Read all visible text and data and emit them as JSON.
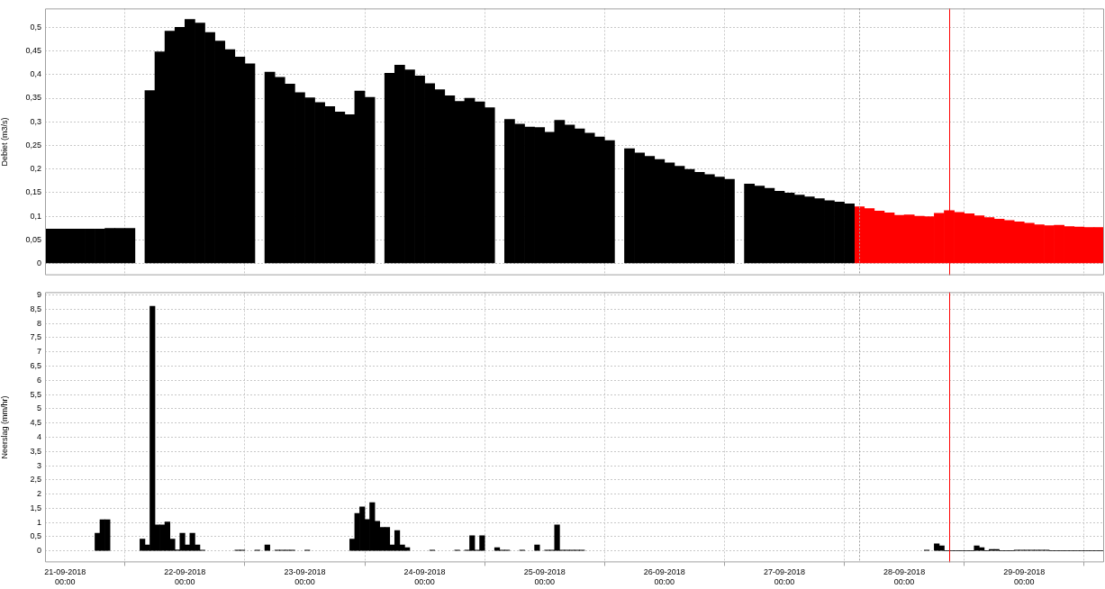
{
  "chart_data": [
    {
      "type": "bar",
      "ylabel": "Debiet (m3/s)",
      "series": [
        {
          "color": "#000000",
          "x": [
            "2018-09-20T21:00",
            "2018-09-20T23:00",
            "2018-09-21T01:00",
            "2018-09-21T03:00",
            "2018-09-21T05:00",
            "2018-09-21T07:00",
            "2018-09-21T09:00",
            "2018-09-21T11:00",
            "2018-09-21T13:00",
            "2018-09-21T15:00",
            "2018-09-21T17:00",
            "2018-09-21T19:00",
            "2018-09-21T21:00",
            "2018-09-21T23:00",
            "2018-09-22T01:00",
            "2018-09-22T03:00",
            "2018-09-22T05:00",
            "2018-09-22T07:00",
            "2018-09-22T09:00",
            "2018-09-22T11:00",
            "2018-09-22T13:00",
            "2018-09-22T15:00",
            "2018-09-22T17:00",
            "2018-09-22T19:00",
            "2018-09-22T21:00",
            "2018-09-22T23:00",
            "2018-09-23T01:00",
            "2018-09-23T03:00",
            "2018-09-23T05:00",
            "2018-09-23T07:00",
            "2018-09-23T09:00",
            "2018-09-23T11:00",
            "2018-09-23T13:00",
            "2018-09-23T15:00",
            "2018-09-23T17:00",
            "2018-09-23T19:00",
            "2018-09-23T21:00",
            "2018-09-23T23:00",
            "2018-09-24T01:00",
            "2018-09-24T03:00",
            "2018-09-24T05:00",
            "2018-09-24T07:00",
            "2018-09-24T09:00",
            "2018-09-24T11:00",
            "2018-09-24T13:00",
            "2018-09-24T15:00",
            "2018-09-24T17:00",
            "2018-09-24T19:00",
            "2018-09-24T21:00",
            "2018-09-24T23:00",
            "2018-09-25T01:00",
            "2018-09-25T03:00",
            "2018-09-25T05:00",
            "2018-09-25T07:00",
            "2018-09-25T09:00",
            "2018-09-25T11:00",
            "2018-09-25T13:00",
            "2018-09-25T15:00",
            "2018-09-25T17:00",
            "2018-09-25T19:00",
            "2018-09-25T21:00",
            "2018-09-25T23:00",
            "2018-09-26T01:00",
            "2018-09-26T03:00",
            "2018-09-26T05:00",
            "2018-09-26T07:00",
            "2018-09-26T09:00",
            "2018-09-26T11:00",
            "2018-09-26T13:00",
            "2018-09-26T15:00",
            "2018-09-26T17:00",
            "2018-09-26T19:00",
            "2018-09-26T21:00",
            "2018-09-26T23:00",
            "2018-09-27T01:00",
            "2018-09-27T03:00",
            "2018-09-27T05:00",
            "2018-09-27T07:00",
            "2018-09-27T09:00",
            "2018-09-27T11:00",
            "2018-09-27T13:00"
          ],
          "values": [
            0.073,
            0.073,
            0.073,
            0.073,
            0.073,
            0.073,
            0.074,
            0.074,
            0.074,
            null,
            0.366,
            0.448,
            0.492,
            0.5,
            0.517,
            0.509,
            0.489,
            0.471,
            0.453,
            0.437,
            0.423,
            null,
            0.405,
            0.394,
            0.38,
            0.362,
            0.351,
            0.341,
            0.332,
            0.321,
            0.315,
            0.365,
            0.352,
            null,
            0.403,
            0.42,
            0.41,
            0.397,
            0.381,
            0.368,
            0.355,
            0.343,
            0.35,
            0.342,
            0.33,
            null,
            0.305,
            0.295,
            0.289,
            0.288,
            0.278,
            0.303,
            0.293,
            0.285,
            0.276,
            0.268,
            0.26,
            null,
            0.243,
            0.234,
            0.227,
            0.22,
            0.213,
            0.206,
            0.199,
            0.193,
            0.188,
            0.183,
            0.178,
            null,
            0.168,
            0.164,
            0.159,
            0.153,
            0.149,
            0.145,
            0.141,
            0.137,
            0.133,
            0.13,
            0.126
          ]
        },
        {
          "color": "#ff0000",
          "x": [
            "2018-09-27T15:00",
            "2018-09-27T17:00",
            "2018-09-27T19:00",
            "2018-09-27T21:00",
            "2018-09-27T23:00",
            "2018-09-28T01:00",
            "2018-09-28T03:00",
            "2018-09-28T05:00",
            "2018-09-28T07:00",
            "2018-09-28T09:00",
            "2018-09-28T11:00",
            "2018-09-28T13:00",
            "2018-09-28T15:00",
            "2018-09-28T17:00",
            "2018-09-28T19:00",
            "2018-09-28T21:00",
            "2018-09-28T23:00",
            "2018-09-29T01:00",
            "2018-09-29T03:00",
            "2018-09-29T05:00",
            "2018-09-29T07:00",
            "2018-09-29T09:00",
            "2018-09-29T11:00",
            "2018-09-29T13:00",
            "2018-09-29T15:00"
          ],
          "values": [
            0.12,
            0.116,
            0.111,
            0.107,
            0.102,
            0.103,
            0.1,
            0.099,
            0.106,
            0.112,
            0.108,
            0.105,
            0.101,
            0.097,
            0.094,
            0.091,
            0.088,
            0.085,
            0.082,
            0.08,
            0.081,
            0.078,
            0.077,
            0.076,
            0.076
          ]
        }
      ],
      "xlim": [
        "2018-09-20T20:00",
        "2018-09-29T16:00"
      ],
      "xticks": [
        {
          "value": "2018-09-21",
          "label": null
        },
        {
          "value": "2018-09-22",
          "label": null
        },
        {
          "value": "2018-09-23",
          "label": null
        },
        {
          "value": "2018-09-24",
          "label": null
        },
        {
          "value": "2018-09-25",
          "label": null
        },
        {
          "value": "2018-09-26",
          "label": null
        },
        {
          "value": "2018-09-27",
          "label": null
        },
        {
          "value": "2018-09-28",
          "label": null
        },
        {
          "value": "2018-09-29",
          "label": null
        }
      ],
      "ylim": [
        -0.025,
        0.54
      ],
      "yticks": [
        0,
        {
          "value": 0.05,
          "label": "0,05"
        },
        {
          "value": 0.1,
          "label": "0,1"
        },
        {
          "value": 0.15,
          "label": "0,15"
        },
        {
          "value": 0.2,
          "label": "0,2"
        },
        {
          "value": 0.25,
          "label": "0,25"
        },
        {
          "value": 0.3,
          "label": "0,3"
        },
        {
          "value": 0.35,
          "label": "0,35"
        },
        {
          "value": 0.4,
          "label": "0,4"
        },
        {
          "value": 0.45,
          "label": "0,45"
        },
        {
          "value": 0.5,
          "label": "0,5"
        }
      ],
      "grid": true,
      "tick_labels": "y",
      "ref_lines": [
        {
          "axis": "x",
          "value": "2018-09-27T15:00",
          "color": "#a0a0a0",
          "line_style": "dotted"
        },
        {
          "axis": "x",
          "value": "2018-09-28T09:00",
          "color": "#ff0000",
          "line_style": "solid"
        }
      ]
    },
    {
      "type": "bar",
      "ylabel": "Neerslag (mm/hr)",
      "color": "#000000",
      "x": [
        "2018-09-21T06:30",
        "2018-09-21T07:30",
        "2018-09-21T08:30",
        "2018-09-21T15:30",
        "2018-09-21T16:30",
        "2018-09-21T17:30",
        "2018-09-21T18:30",
        "2018-09-21T19:30",
        "2018-09-21T20:30",
        "2018-09-21T21:30",
        "2018-09-21T22:30",
        "2018-09-21T23:30",
        "2018-09-22T00:30",
        "2018-09-22T01:30",
        "2018-09-22T02:30",
        "2018-09-22T03:30",
        "2018-09-22T10:30",
        "2018-09-22T11:30",
        "2018-09-22T14:30",
        "2018-09-22T16:30",
        "2018-09-22T18:30",
        "2018-09-22T19:30",
        "2018-09-22T20:30",
        "2018-09-22T21:30",
        "2018-09-23T00:30",
        "2018-09-23T09:30",
        "2018-09-23T10:30",
        "2018-09-23T11:30",
        "2018-09-23T12:30",
        "2018-09-23T13:30",
        "2018-09-23T14:30",
        "2018-09-23T15:30",
        "2018-09-23T16:30",
        "2018-09-23T17:30",
        "2018-09-23T18:30",
        "2018-09-23T19:30",
        "2018-09-23T20:30",
        "2018-09-24T01:30",
        "2018-09-24T06:30",
        "2018-09-24T08:30",
        "2018-09-24T09:30",
        "2018-09-24T10:30",
        "2018-09-24T11:30",
        "2018-09-24T14:30",
        "2018-09-24T15:30",
        "2018-09-24T16:30",
        "2018-09-24T19:30",
        "2018-09-24T22:30",
        "2018-09-25T00:30",
        "2018-09-25T01:30",
        "2018-09-25T02:30",
        "2018-09-25T03:30",
        "2018-09-25T04:30",
        "2018-09-25T05:30",
        "2018-09-25T06:30",
        "2018-09-25T07:30",
        "2018-09-28T04:30",
        "2018-09-28T06:30",
        "2018-09-28T07:30",
        "2018-09-28T08:30",
        "2018-09-28T09:30",
        "2018-09-28T10:30",
        "2018-09-28T11:30",
        "2018-09-28T12:30",
        "2018-09-28T13:30",
        "2018-09-28T14:30",
        "2018-09-28T15:30",
        "2018-09-28T16:30",
        "2018-09-28T17:30",
        "2018-09-28T18:30",
        "2018-09-28T19:30",
        "2018-09-28T20:30",
        "2018-09-28T21:30",
        "2018-09-28T22:30",
        "2018-09-28T23:30",
        "2018-09-29T00:30",
        "2018-09-29T01:30",
        "2018-09-29T02:30",
        "2018-09-29T03:30",
        "2018-09-29T04:30",
        "2018-09-29T05:30",
        "2018-09-29T06:30",
        "2018-09-29T07:30",
        "2018-09-29T08:30",
        "2018-09-29T09:30",
        "2018-09-29T10:30",
        "2018-09-29T11:30",
        "2018-09-29T12:30",
        "2018-09-29T13:30",
        "2018-09-29T14:30",
        "2018-09-29T15:30"
      ],
      "values": [
        0.62,
        1.1,
        1.1,
        0.42,
        0.21,
        8.6,
        0.92,
        0.92,
        1.02,
        0.42,
        0.04,
        0.62,
        0.21,
        0.62,
        0.21,
        0.03,
        0.03,
        0.03,
        0.03,
        0.21,
        0.03,
        0.03,
        0.03,
        0.03,
        0.03,
        0.42,
        1.32,
        1.55,
        1.11,
        1.7,
        1.04,
        0.83,
        0.83,
        0.21,
        0.72,
        0.21,
        0.12,
        0.03,
        0.03,
        0.03,
        0.54,
        0.03,
        0.54,
        0.12,
        0.03,
        0.03,
        0.03,
        0.21,
        0.03,
        0.03,
        0.92,
        0.03,
        0.03,
        0.03,
        0.03,
        0.03,
        0.03,
        0.25,
        0.18,
        0.01,
        0.01,
        0.01,
        0.01,
        0.01,
        0.01,
        0.18,
        0.12,
        0.01,
        0.05,
        0.05,
        0.01,
        0.01,
        0.01,
        0.03,
        0.03,
        0.03,
        0.03,
        0.03,
        0.03,
        0.03,
        0.01,
        0.01,
        0.01,
        0.01,
        0.01,
        0.01,
        0.01,
        0.01,
        0.01,
        0.01,
        0.01
      ],
      "xlim": [
        "2018-09-20T20:00",
        "2018-09-29T16:00"
      ],
      "xticks": [
        {
          "value": "2018-09-21",
          "label": "21-09-2018\n00:00"
        },
        {
          "value": "2018-09-22",
          "label": "22-09-2018\n00:00"
        },
        {
          "value": "2018-09-23",
          "label": "23-09-2018\n00:00"
        },
        {
          "value": "2018-09-24",
          "label": "24-09-2018\n00:00"
        },
        {
          "value": "2018-09-25",
          "label": "25-09-2018\n00:00"
        },
        {
          "value": "2018-09-26",
          "label": "26-09-2018\n00:00"
        },
        {
          "value": "2018-09-27",
          "label": "27-09-2018\n00:00"
        },
        {
          "value": "2018-09-28",
          "label": "28-09-2018\n00:00"
        },
        {
          "value": "2018-09-29",
          "label": "29-09-2018\n00:00"
        }
      ],
      "ylim": [
        -0.4,
        9.1
      ],
      "yticks": [
        0,
        {
          "value": 0.5,
          "label": "0,5"
        },
        1,
        {
          "value": 1.5,
          "label": "1,5"
        },
        2,
        {
          "value": 2.5,
          "label": "2,5"
        },
        3,
        {
          "value": 3.5,
          "label": "3,5"
        },
        4,
        {
          "value": 4.5,
          "label": "4,5"
        },
        5,
        {
          "value": 5.5,
          "label": "5,5"
        },
        6,
        {
          "value": 6.5,
          "label": "6,5"
        },
        7,
        {
          "value": 7.5,
          "label": "7,5"
        },
        8,
        {
          "value": 8.5,
          "label": "8,5"
        },
        9
      ],
      "grid": true,
      "ref_lines": [
        {
          "axis": "x",
          "value": "2018-09-27T15:00",
          "color": "#a0a0a0",
          "line_style": "dotted"
        },
        {
          "axis": "x",
          "value": "2018-09-28T09:00",
          "color": "#ff0000",
          "line_style": "solid"
        }
      ]
    }
  ]
}
